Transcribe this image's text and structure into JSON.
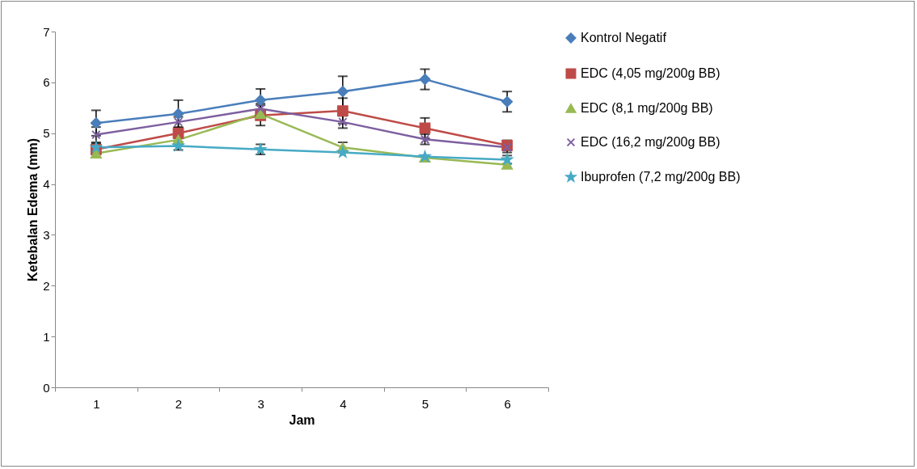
{
  "chart_data": {
    "type": "line",
    "xlabel": "Jam",
    "ylabel": "Ketebalan Edema (mm)",
    "categories": [
      "1",
      "2",
      "3",
      "4",
      "5",
      "6"
    ],
    "ylim": [
      0,
      7
    ],
    "yticks": [
      0,
      1,
      2,
      3,
      4,
      5,
      6,
      7
    ],
    "grid": false,
    "legend": "right",
    "series": [
      {
        "name": "Kontrol Negatif",
        "color": "#4a7ebb",
        "marker": "diamond",
        "values": [
          5.2,
          5.38,
          5.65,
          5.82,
          6.06,
          5.62
        ],
        "errors": [
          0.25,
          0.27,
          0.22,
          0.3,
          0.2,
          0.2
        ]
      },
      {
        "name": "EDC (4,05 mg/200g BB)",
        "color": "#be4b48",
        "marker": "square",
        "values": [
          4.68,
          5.0,
          5.35,
          5.44,
          5.1,
          4.76
        ],
        "errors": [
          0.1,
          0.1,
          0.2,
          0.25,
          0.2,
          0.1
        ]
      },
      {
        "name": "EDC (8,1 mg/200g BB)",
        "color": "#98b954",
        "marker": "triangle",
        "values": [
          4.6,
          4.87,
          5.38,
          4.72,
          4.52,
          4.38
        ],
        "errors": [
          null,
          null,
          0.05,
          0.1,
          null,
          null
        ]
      },
      {
        "name": "EDC (16,2 mg/200g BB)",
        "color": "#7d5fa0",
        "marker": "cross",
        "values": [
          4.97,
          5.22,
          5.48,
          5.22,
          4.88,
          4.72
        ],
        "errors": [
          0.15,
          0.1,
          0.1,
          0.12,
          0.1,
          0.1
        ]
      },
      {
        "name": "Ibuprofen (7,2 mg/200g BB)",
        "color": "#46aac5",
        "marker": "star",
        "values": [
          4.72,
          4.75,
          4.68,
          4.62,
          4.54,
          4.48
        ],
        "errors": [
          0.08,
          0.08,
          0.1,
          null,
          null,
          0.08
        ]
      }
    ]
  }
}
